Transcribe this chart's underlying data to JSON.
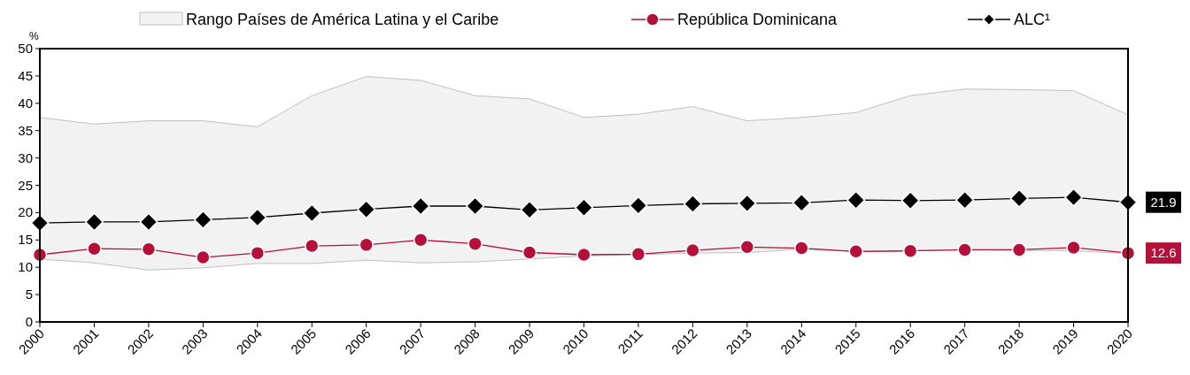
{
  "chart_data": {
    "type": "line",
    "ylabel": "%",
    "categories": [
      "2000",
      "2001",
      "2002",
      "2003",
      "2004",
      "2005",
      "2006",
      "2007",
      "2008",
      "2009",
      "2010",
      "2011",
      "2012",
      "2013",
      "2014",
      "2015",
      "2016",
      "2017",
      "2018",
      "2019",
      "2020"
    ],
    "ylim": [
      0,
      50
    ],
    "yticks": [
      0,
      5,
      10,
      15,
      20,
      25,
      30,
      35,
      40,
      45,
      50
    ],
    "legend": "top",
    "grid": false,
    "series": [
      {
        "name": "Rango Países de América Latina y el Caribe",
        "color": "#f2f2f2",
        "values": [
          null,
          null,
          null,
          null,
          null,
          null,
          null,
          null,
          null,
          null,
          null,
          null,
          null,
          null,
          null,
          null,
          null,
          null,
          null,
          null,
          null
        ],
        "lower": [
          11.5,
          10.8,
          9.5,
          9.9,
          10.7,
          10.7,
          11.3,
          10.8,
          11.0,
          11.5,
          12.1,
          12.3,
          12.6,
          12.7,
          13.3,
          12.9,
          13.0,
          13.2,
          13.1,
          13.0,
          12.5
        ],
        "upper": [
          37.4,
          36.2,
          36.8,
          36.8,
          35.7,
          41.4,
          44.9,
          44.2,
          41.4,
          40.8,
          37.4,
          38.0,
          39.4,
          36.8,
          37.4,
          38.3,
          41.4,
          42.6,
          42.5,
          42.3,
          37.9
        ]
      },
      {
        "name": "República Dominicana",
        "type": "line",
        "color": "#b5103a",
        "marker": "circle",
        "values": [
          12.3,
          13.4,
          13.3,
          11.8,
          12.6,
          13.9,
          14.1,
          15.0,
          14.3,
          12.7,
          12.3,
          12.4,
          13.1,
          13.7,
          13.5,
          12.9,
          13.0,
          13.2,
          13.2,
          13.6,
          12.6
        ],
        "value_labels": [
          null,
          null,
          null,
          null,
          null,
          null,
          null,
          null,
          null,
          null,
          null,
          null,
          null,
          null,
          null,
          null,
          null,
          null,
          null,
          null,
          "12.6"
        ]
      },
      {
        "name": "ALC¹",
        "type": "line",
        "color": "#000000",
        "marker": "diamond",
        "values": [
          18.1,
          18.3,
          18.3,
          18.7,
          19.1,
          19.9,
          20.6,
          21.2,
          21.2,
          20.5,
          20.9,
          21.3,
          21.6,
          21.7,
          21.8,
          22.3,
          22.2,
          22.3,
          22.6,
          22.8,
          21.9
        ],
        "value_labels": [
          null,
          null,
          null,
          null,
          null,
          null,
          null,
          null,
          null,
          null,
          null,
          null,
          null,
          null,
          null,
          null,
          null,
          null,
          null,
          null,
          "21.9"
        ]
      }
    ]
  }
}
